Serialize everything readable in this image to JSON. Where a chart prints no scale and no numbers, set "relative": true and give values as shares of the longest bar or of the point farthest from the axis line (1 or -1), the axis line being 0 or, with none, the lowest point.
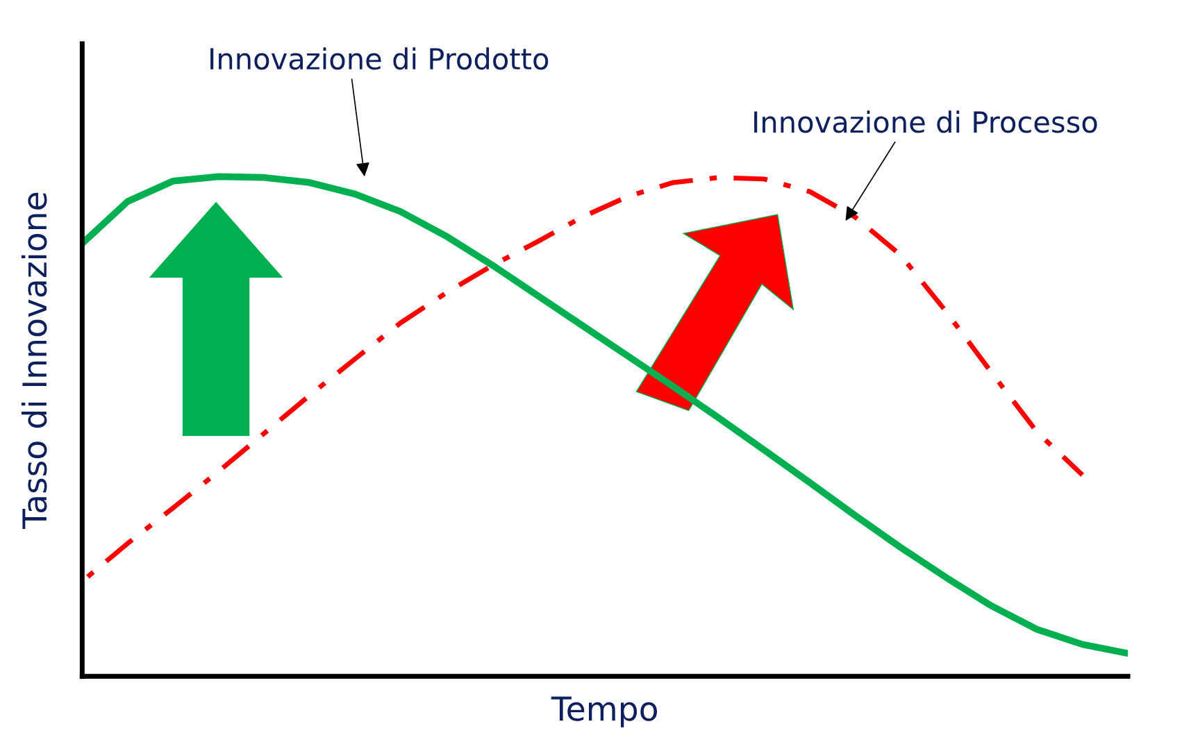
{
  "chart_data": {
    "type": "line",
    "relative": true,
    "xlabel": "Tempo",
    "ylabel": "Tasso di Innovazione",
    "legend": false,
    "categories": [
      null,
      null,
      null,
      null,
      null,
      null,
      null,
      null,
      null,
      null,
      null,
      null,
      null,
      null,
      null,
      null,
      null,
      null,
      null,
      null,
      null,
      null,
      null,
      null
    ],
    "series": [
      {
        "name": "Innovazione di Prodotto",
        "color": "#00b050",
        "line_style": "solid",
        "values": [
          0.866,
          0.95,
          0.991,
          1.0,
          0.998,
          0.988,
          0.965,
          0.93,
          0.881,
          0.824,
          0.763,
          0.702,
          0.641,
          0.58,
          0.517,
          0.453,
          0.388,
          0.322,
          0.258,
          0.198,
          0.141,
          0.094,
          0.064,
          0.046
        ]
      },
      {
        "name": "Innovazione di Processo",
        "color": "#ff0000",
        "line_style": "dashdot",
        "values": [
          0.19,
          0.266,
          0.337,
          0.41,
          0.486,
          0.562,
          0.635,
          0.707,
          0.767,
          0.821,
          0.869,
          0.919,
          0.96,
          0.988,
          0.998,
          0.995,
          0.97,
          0.919,
          0.843,
          0.73,
          0.608,
          0.489,
          0.403,
          null
        ]
      }
    ]
  }
}
